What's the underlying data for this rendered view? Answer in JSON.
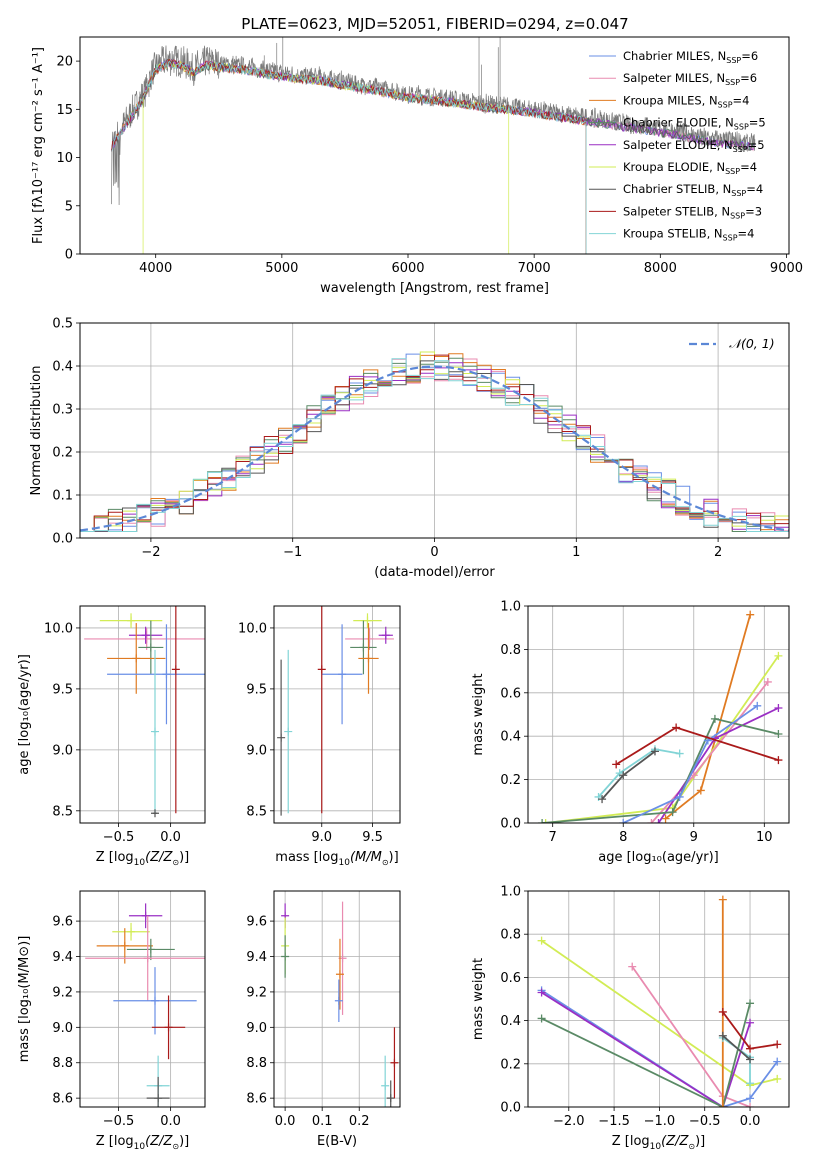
{
  "figure": {
    "title": "PLATE=0623, MJD=52051, FIBERID=0294, z=0.047"
  },
  "colors": {
    "Chabrier MILES": "#6a8fe6",
    "Salpeter MILES": "#e98bb0",
    "Kroupa MILES": "#e07b22",
    "Chabrier ELODIE": "#5a8a66",
    "Salpeter ELODIE": "#9a2fc4",
    "Kroupa ELODIE": "#d2ec55",
    "Chabrier STELIB": "#555555",
    "Salpeter STELIB": "#aa1a1a",
    "Kroupa STELIB": "#82d4d6"
  },
  "chart_data": [
    {
      "id": "spectrum",
      "type": "line",
      "title": "PLATE=0623, MJD=52051, FIBERID=0294, z=0.047",
      "xlabel": "wavelength [Angstrom, rest frame]",
      "ylabel": "Flux [fλ10⁻¹⁷ erg cm⁻² s⁻¹ A⁻¹]",
      "xlim": [
        3400,
        9020
      ],
      "ylim": [
        0,
        22.5
      ],
      "xticks": [
        4000,
        5000,
        6000,
        7000,
        8000,
        9000
      ],
      "yticks": [
        0,
        5,
        10,
        15,
        20
      ],
      "grid": false,
      "legend_position": "top-right",
      "legend": [
        {
          "main": "Chabrier MILES, N",
          "sub": "SSP",
          "tail": "=6"
        },
        {
          "main": "Salpeter MILES, N",
          "sub": "SSP",
          "tail": "=6"
        },
        {
          "main": "Kroupa MILES, N",
          "sub": "SSP",
          "tail": "=4"
        },
        {
          "main": "Chabrier ELODIE, N",
          "sub": "SSP",
          "tail": "=5"
        },
        {
          "main": "Salpeter ELODIE, N",
          "sub": "SSP",
          "tail": "=5"
        },
        {
          "main": "Kroupa ELODIE, N",
          "sub": "SSP",
          "tail": "=4"
        },
        {
          "main": "Chabrier STELIB, N",
          "sub": "SSP",
          "tail": "=4"
        },
        {
          "main": "Salpeter STELIB, N",
          "sub": "SSP",
          "tail": "=3"
        },
        {
          "main": "Kroupa STELIB, N",
          "sub": "SSP",
          "tail": "=4"
        }
      ],
      "observed_continuum": {
        "x": [
          3650,
          3700,
          3800,
          3900,
          4000,
          4100,
          4200,
          4300,
          4400,
          4500,
          4700,
          4900,
          5100,
          5300,
          5500,
          5800,
          6000,
          6300,
          6600,
          6900,
          7200,
          7500,
          7800,
          8100,
          8400,
          8750
        ],
        "y": [
          11.5,
          12.5,
          14.5,
          16.5,
          19.5,
          20.2,
          20.0,
          19.2,
          20.0,
          19.8,
          19.5,
          19.0,
          18.6,
          18.4,
          17.9,
          17.2,
          16.6,
          16.2,
          15.6,
          15.2,
          14.6,
          14.0,
          13.4,
          12.8,
          12.0,
          11.5
        ]
      },
      "model_ranges": {
        "Kroupa ELODIE": [
          3900,
          6800
        ],
        "Kroupa MILES": [
          3540,
          7420
        ],
        "Salpeter STELIB": [
          3540,
          7420
        ],
        "Kroupa STELIB": [
          3540,
          7420
        ]
      }
    },
    {
      "id": "residuals",
      "type": "histogram",
      "xlabel": "(data-model)/error",
      "ylabel": "Normed distribution",
      "xlim": [
        -2.5,
        2.5
      ],
      "ylim": [
        0,
        0.5
      ],
      "xticks": [
        -2,
        -1,
        0,
        1,
        2
      ],
      "yticks": [
        0.0,
        0.1,
        0.2,
        0.3,
        0.4,
        0.5
      ],
      "grid": true,
      "bin_width": 0.1,
      "legend_label": "𝒩(0, 1)",
      "legend_position": "top-right",
      "reference_curve": "normal(0,1)"
    },
    {
      "id": "age-Z",
      "type": "scatter",
      "xlabel_main": "Z [log",
      "xlabel_sub": "10",
      "xlabel_tail": "(Z/Z",
      "xlabel_end": ")]",
      "ylabel": "age  [log₁₀(age/yr)]",
      "xlim": [
        -0.87,
        0.33
      ],
      "ylim": [
        8.4,
        10.18
      ],
      "xticks": [
        -0.5,
        0.0
      ],
      "yticks": [
        8.5,
        9.0,
        9.5,
        10.0
      ],
      "grid": true,
      "points": [
        {
          "model": "Kroupa ELODIE",
          "x": -0.38,
          "xerr": 0.3,
          "y": 10.06,
          "yerr": 0.06
        },
        {
          "model": "Salpeter MILES",
          "x": -0.23,
          "xerr": 0.6,
          "y": 9.91,
          "yerr": 0.09
        },
        {
          "model": "Salpeter ELODIE",
          "x": -0.24,
          "xerr": 0.16,
          "y": 9.94,
          "yerr": 0.07
        },
        {
          "model": "Chabrier ELODIE",
          "x": -0.19,
          "xerr": 0.12,
          "y": 9.84,
          "yerr": 0.22
        },
        {
          "model": "Kroupa MILES",
          "x": -0.33,
          "xerr": 0.28,
          "y": 9.75,
          "yerr": 0.29
        },
        {
          "model": "Chabrier MILES",
          "x": -0.04,
          "xerr": 0.57,
          "y": 9.62,
          "yerr": 0.41
        },
        {
          "model": "Salpeter STELIB",
          "x": 0.05,
          "xerr": 0.0,
          "y": 9.66,
          "yerr": 1.18
        },
        {
          "model": "Kroupa STELIB",
          "x": -0.15,
          "xerr": 0.02,
          "y": 9.15,
          "yerr": 0.67
        },
        {
          "model": "Chabrier STELIB",
          "x": -0.15,
          "xerr": 0.02,
          "y": 8.48,
          "yerr": 0.0
        }
      ]
    },
    {
      "id": "age-mass",
      "type": "scatter",
      "xlabel_main": "mass [log",
      "xlabel_sub": "10",
      "xlabel_tail": "(M/M",
      "xlabel_end": ")]",
      "ylabel": "",
      "xlim": [
        8.53,
        9.77
      ],
      "ylim": [
        8.4,
        10.18
      ],
      "xticks": [
        9.0,
        9.5
      ],
      "yticks": [
        8.5,
        9.0,
        9.5,
        10.0
      ],
      "grid": true,
      "points": [
        {
          "model": "Kroupa ELODIE",
          "x": 9.45,
          "xerr": 0.14,
          "y": 10.06,
          "yerr": 0.06
        },
        {
          "model": "Salpeter MILES",
          "x": 9.47,
          "xerr": 0.24,
          "y": 9.91,
          "yerr": 0.09
        },
        {
          "model": "Salpeter ELODIE",
          "x": 9.63,
          "xerr": 0.07,
          "y": 9.94,
          "yerr": 0.07
        },
        {
          "model": "Chabrier ELODIE",
          "x": 9.41,
          "xerr": 0.13,
          "y": 9.84,
          "yerr": 0.22
        },
        {
          "model": "Kroupa MILES",
          "x": 9.46,
          "xerr": 0.1,
          "y": 9.75,
          "yerr": 0.29
        },
        {
          "model": "Chabrier MILES",
          "x": 9.2,
          "xerr": 0.2,
          "y": 9.62,
          "yerr": 0.41
        },
        {
          "model": "Salpeter STELIB",
          "x": 9.0,
          "xerr": 0.0,
          "y": 9.66,
          "yerr": 1.18
        },
        {
          "model": "Kroupa STELIB",
          "x": 8.67,
          "xerr": 0.0,
          "y": 9.15,
          "yerr": 0.67
        },
        {
          "model": "Chabrier STELIB",
          "x": 8.6,
          "xerr": 0.0,
          "y": 9.1,
          "yerr": 0.64
        }
      ]
    },
    {
      "id": "weight-age",
      "type": "line",
      "xlabel": "age  [log₁₀(age/yr)]",
      "ylabel": "mass weight",
      "xlim": [
        6.65,
        10.35
      ],
      "ylim": [
        0,
        1
      ],
      "xticks": [
        7,
        8,
        9,
        10
      ],
      "yticks": [
        0.0,
        0.2,
        0.4,
        0.6,
        0.8,
        1.0
      ],
      "grid": true,
      "series": [
        {
          "model": "Kroupa MILES",
          "x": [
            8.6,
            9.1,
            9.8
          ],
          "y": [
            0.02,
            0.15,
            0.96
          ]
        },
        {
          "model": "Kroupa ELODIE",
          "x": [
            6.9,
            8.7,
            10.2
          ],
          "y": [
            0.0,
            0.07,
            0.77
          ]
        },
        {
          "model": "Salpeter MILES",
          "x": [
            8.4,
            9.0,
            10.05
          ],
          "y": [
            0.0,
            0.22,
            0.65
          ]
        },
        {
          "model": "Salpeter ELODIE",
          "x": [
            8.5,
            9.3,
            10.2
          ],
          "y": [
            0.0,
            0.39,
            0.53
          ]
        },
        {
          "model": "Chabrier ELODIE",
          "x": [
            6.85,
            8.7,
            9.3,
            10.2
          ],
          "y": [
            0.0,
            0.05,
            0.48,
            0.41
          ]
        },
        {
          "model": "Chabrier MILES",
          "x": [
            8.0,
            8.8,
            9.2,
            9.9
          ],
          "y": [
            0.0,
            0.12,
            0.38,
            0.54
          ]
        },
        {
          "model": "Salpeter STELIB",
          "x": [
            7.9,
            8.75,
            10.2
          ],
          "y": [
            0.27,
            0.44,
            0.29
          ]
        },
        {
          "model": "Kroupa STELIB",
          "x": [
            7.65,
            7.95,
            8.45,
            8.8
          ],
          "y": [
            0.12,
            0.23,
            0.34,
            0.32
          ]
        },
        {
          "model": "Chabrier STELIB",
          "x": [
            7.7,
            8.0,
            8.45
          ],
          "y": [
            0.11,
            0.22,
            0.33
          ]
        }
      ]
    },
    {
      "id": "mass-Z",
      "type": "scatter",
      "xlabel_main": "Z [log",
      "xlabel_sub": "10",
      "xlabel_tail": "(Z/Z",
      "xlabel_end": ")]",
      "ylabel": "mass [log₁₀(M/M⊙)]",
      "xlim": [
        -0.87,
        0.33
      ],
      "ylim": [
        8.55,
        9.77
      ],
      "xticks": [
        -0.5,
        0.0
      ],
      "yticks": [
        8.6,
        8.8,
        9.0,
        9.2,
        9.4,
        9.6
      ],
      "grid": true,
      "points": [
        {
          "model": "Salpeter ELODIE",
          "x": -0.24,
          "xerr": 0.16,
          "y": 9.63,
          "yerr": 0.07
        },
        {
          "model": "Kroupa ELODIE",
          "x": -0.38,
          "xerr": 0.18,
          "y": 9.54,
          "yerr": 0.05
        },
        {
          "model": "Kroupa MILES",
          "x": -0.44,
          "xerr": 0.27,
          "y": 9.46,
          "yerr": 0.1
        },
        {
          "model": "Chabrier ELODIE",
          "x": -0.19,
          "xerr": 0.23,
          "y": 9.44,
          "yerr": 0.06
        },
        {
          "model": "Salpeter MILES",
          "x": -0.22,
          "xerr": 0.6,
          "y": 9.39,
          "yerr": 0.24
        },
        {
          "model": "Chabrier MILES",
          "x": -0.15,
          "xerr": 0.4,
          "y": 9.15,
          "yerr": 0.19
        },
        {
          "model": "Salpeter STELIB",
          "x": -0.02,
          "xerr": 0.16,
          "y": 9.0,
          "yerr": 0.18
        },
        {
          "model": "Kroupa STELIB",
          "x": -0.12,
          "xerr": 0.11,
          "y": 8.67,
          "yerr": 0.17
        },
        {
          "model": "Chabrier STELIB",
          "x": -0.12,
          "xerr": 0.11,
          "y": 8.6,
          "yerr": 0.12
        }
      ]
    },
    {
      "id": "mass-ebv",
      "type": "scatter",
      "xlabel": "E(B-V)",
      "ylabel": "",
      "xlim": [
        -0.03,
        0.31
      ],
      "ylim": [
        8.55,
        9.77
      ],
      "xticks": [
        0.0,
        0.1,
        0.2
      ],
      "yticks": [
        8.6,
        8.8,
        9.0,
        9.2,
        9.4,
        9.6
      ],
      "grid": true,
      "points": [
        {
          "model": "Salpeter ELODIE",
          "x": 0.0,
          "xerr": 0.0,
          "y": 9.63,
          "yerr": 0.07
        },
        {
          "model": "Kroupa ELODIE",
          "x": 0.0,
          "xerr": 0.0,
          "y": 9.46,
          "yerr": 0.16
        },
        {
          "model": "Chabrier ELODIE",
          "x": 0.0,
          "xerr": 0.0,
          "y": 9.4,
          "yerr": 0.12
        },
        {
          "model": "Salpeter MILES",
          "x": 0.155,
          "xerr": 0.0,
          "y": 9.39,
          "yerr": 0.32
        },
        {
          "model": "Kroupa MILES",
          "x": 0.148,
          "xerr": 0.0,
          "y": 9.3,
          "yerr": 0.2
        },
        {
          "model": "Chabrier MILES",
          "x": 0.145,
          "xerr": 0.0,
          "y": 9.15,
          "yerr": 0.12
        },
        {
          "model": "Kroupa STELIB",
          "x": 0.27,
          "xerr": 0.0,
          "y": 8.67,
          "yerr": 0.17
        },
        {
          "model": "Chabrier STELIB",
          "x": 0.285,
          "xerr": 0.0,
          "y": 8.6,
          "yerr": 0.1
        },
        {
          "model": "Salpeter STELIB",
          "x": 0.295,
          "xerr": 0.0,
          "y": 8.8,
          "yerr": 0.2
        }
      ]
    },
    {
      "id": "weight-Z",
      "type": "line",
      "xlabel_main": "Z [log",
      "xlabel_sub": "10",
      "xlabel_tail": "(Z/Z",
      "xlabel_end": ")]",
      "ylabel": "mass weight",
      "xlim": [
        -2.45,
        0.43
      ],
      "ylim": [
        0,
        1
      ],
      "xticks": [
        -2.0,
        -1.5,
        -1.0,
        -0.5,
        0.0
      ],
      "yticks": [
        0.0,
        0.2,
        0.4,
        0.6,
        0.8,
        1.0
      ],
      "grid": true,
      "series": [
        {
          "model": "Kroupa ELODIE",
          "x": [
            -2.3,
            0.0,
            0.3
          ],
          "y": [
            0.77,
            0.1,
            0.13
          ]
        },
        {
          "model": "Salpeter MILES",
          "x": [
            -1.3,
            -0.3,
            0.0
          ],
          "y": [
            0.65,
            0.05,
            0.0
          ]
        },
        {
          "model": "Chabrier MILES",
          "x": [
            -2.3,
            -0.3,
            0.0,
            0.3
          ],
          "y": [
            0.54,
            0.0,
            0.04,
            0.21
          ]
        },
        {
          "model": "Salpeter ELODIE",
          "x": [
            -2.3,
            -0.3,
            0.0
          ],
          "y": [
            0.53,
            0.0,
            0.39
          ]
        },
        {
          "model": "Chabrier ELODIE",
          "x": [
            -2.3,
            -0.3,
            0.0
          ],
          "y": [
            0.41,
            0.0,
            0.48
          ]
        },
        {
          "model": "Kroupa MILES",
          "x": [
            -0.3,
            -0.3
          ],
          "y": [
            0.0,
            0.96
          ]
        },
        {
          "model": "Salpeter STELIB",
          "x": [
            -0.3,
            0.0,
            0.3
          ],
          "y": [
            0.44,
            0.27,
            0.29
          ]
        },
        {
          "model": "Kroupa STELIB",
          "x": [
            -0.3,
            0.0,
            0.0
          ],
          "y": [
            0.32,
            0.23,
            0.11
          ]
        },
        {
          "model": "Chabrier STELIB",
          "x": [
            -0.3,
            0.0
          ],
          "y": [
            0.33,
            0.22
          ]
        }
      ]
    }
  ]
}
